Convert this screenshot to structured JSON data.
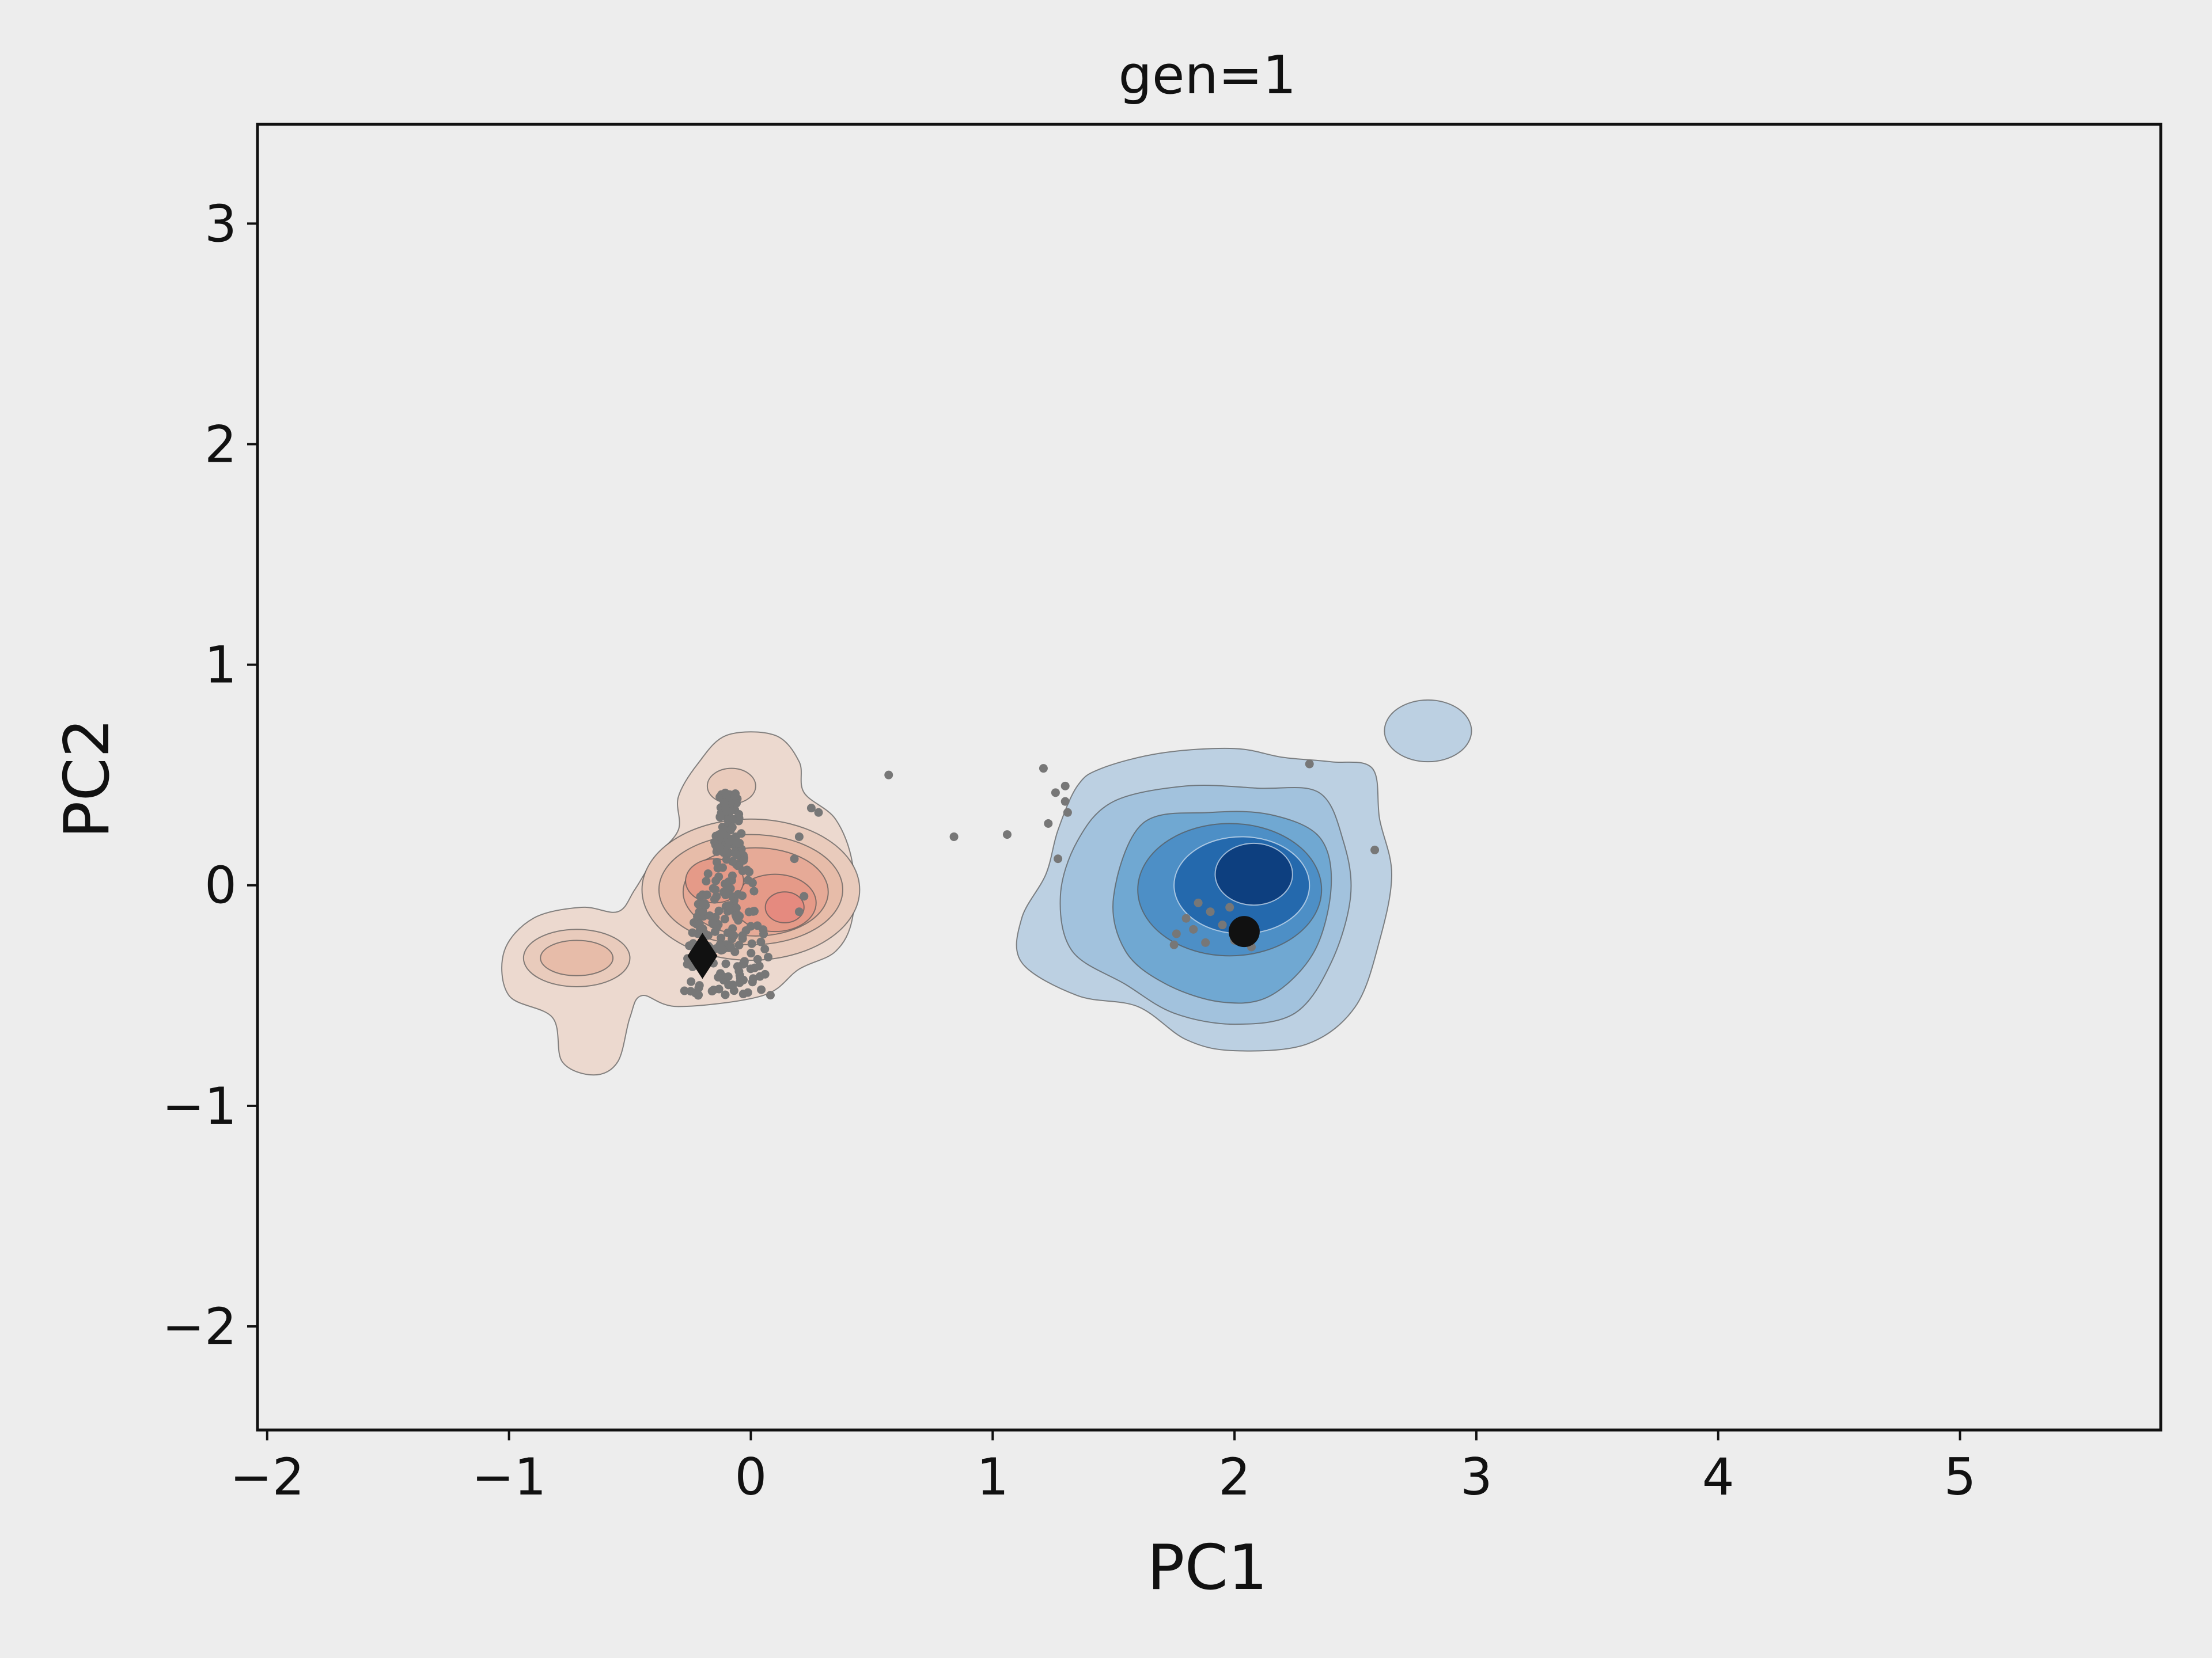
{
  "chart_data": {
    "type": "scatter",
    "title": "gen=1",
    "xlabel": "PC1",
    "ylabel": "PC2",
    "xlim": [
      -2.04,
      5.83
    ],
    "ylim": [
      -2.47,
      3.45
    ],
    "xticks": [
      -2,
      -1,
      0,
      1,
      2,
      3,
      4,
      5
    ],
    "xtick_labels": [
      "−2",
      "−1",
      "0",
      "1",
      "2",
      "3",
      "4",
      "5"
    ],
    "yticks": [
      -2,
      -1,
      0,
      1,
      2,
      3
    ],
    "ytick_labels": [
      "−2",
      "−1",
      "0",
      "1",
      "2",
      "3"
    ],
    "grid": false,
    "colors": {
      "background": "#ededed",
      "red_density_light": "#ecd5c9",
      "red_density_dark": "#e58a7f",
      "blue_density_light": "#b8cfe1",
      "blue_density_dark": "#0d3f7f",
      "points": "#777777",
      "markers": "#111111"
    },
    "density_regions": [
      {
        "name": "red",
        "levels": [
          {
            "color": "#ecd9cf",
            "blobs": [
              {
                "type": "path",
                "points": [
                  [
                    -0.22,
                    0.55
                  ],
                  [
                    -0.1,
                    0.68
                  ],
                  [
                    0.1,
                    0.68
                  ],
                  [
                    0.2,
                    0.56
                  ],
                  [
                    0.22,
                    0.42
                  ],
                  [
                    0.35,
                    0.3
                  ],
                  [
                    0.42,
                    0.1
                  ],
                  [
                    0.42,
                    -0.15
                  ],
                  [
                    0.35,
                    -0.3
                  ],
                  [
                    0.2,
                    -0.38
                  ],
                  [
                    0.05,
                    -0.5
                  ],
                  [
                    -0.3,
                    -0.55
                  ],
                  [
                    -0.45,
                    -0.5
                  ],
                  [
                    -0.5,
                    -0.6
                  ],
                  [
                    -0.55,
                    -0.8
                  ],
                  [
                    -0.65,
                    -0.86
                  ],
                  [
                    -0.78,
                    -0.8
                  ],
                  [
                    -0.82,
                    -0.6
                  ],
                  [
                    -1.0,
                    -0.5
                  ],
                  [
                    -1.02,
                    -0.3
                  ],
                  [
                    -0.9,
                    -0.15
                  ],
                  [
                    -0.7,
                    -0.1
                  ],
                  [
                    -0.55,
                    -0.12
                  ],
                  [
                    -0.48,
                    -0.02
                  ],
                  [
                    -0.4,
                    0.12
                  ],
                  [
                    -0.3,
                    0.25
                  ],
                  [
                    -0.3,
                    0.4
                  ]
                ]
              }
            ]
          },
          {
            "color": "#e9cbbc",
            "blobs": [
              {
                "type": "ellipse",
                "cx": 0.0,
                "cy": -0.02,
                "rx": 0.45,
                "ry": 0.32
              },
              {
                "type": "ellipse",
                "cx": -0.72,
                "cy": -0.33,
                "rx": 0.22,
                "ry": 0.13
              },
              {
                "type": "ellipse",
                "cx": -0.08,
                "cy": 0.45,
                "rx": 0.1,
                "ry": 0.08
              }
            ]
          },
          {
            "color": "#e7bca9",
            "blobs": [
              {
                "type": "ellipse",
                "cx": 0.0,
                "cy": -0.02,
                "rx": 0.38,
                "ry": 0.25
              },
              {
                "type": "ellipse",
                "cx": -0.72,
                "cy": -0.33,
                "rx": 0.15,
                "ry": 0.08
              }
            ]
          },
          {
            "color": "#e6aa97",
            "blobs": [
              {
                "type": "ellipse",
                "cx": 0.02,
                "cy": -0.03,
                "rx": 0.3,
                "ry": 0.2
              }
            ]
          },
          {
            "color": "#e59a88",
            "blobs": [
              {
                "type": "ellipse",
                "cx": 0.1,
                "cy": -0.08,
                "rx": 0.17,
                "ry": 0.13
              },
              {
                "type": "ellipse",
                "cx": -0.15,
                "cy": 0.02,
                "rx": 0.12,
                "ry": 0.1
              }
            ]
          },
          {
            "color": "#e58a7f",
            "blobs": [
              {
                "type": "ellipse",
                "cx": 0.14,
                "cy": -0.1,
                "rx": 0.08,
                "ry": 0.07
              }
            ]
          }
        ]
      },
      {
        "name": "blue",
        "levels": [
          {
            "color": "#bcd0e2",
            "blobs": [
              {
                "type": "path",
                "points": [
                  [
                    1.45,
                    0.53
                  ],
                  [
                    1.7,
                    0.6
                  ],
                  [
                    2.0,
                    0.62
                  ],
                  [
                    2.2,
                    0.58
                  ],
                  [
                    2.4,
                    0.56
                  ],
                  [
                    2.57,
                    0.53
                  ],
                  [
                    2.6,
                    0.3
                  ],
                  [
                    2.65,
                    0.05
                  ],
                  [
                    2.6,
                    -0.25
                  ],
                  [
                    2.5,
                    -0.55
                  ],
                  [
                    2.3,
                    -0.72
                  ],
                  [
                    2.0,
                    -0.75
                  ],
                  [
                    1.8,
                    -0.7
                  ],
                  [
                    1.6,
                    -0.55
                  ],
                  [
                    1.35,
                    -0.5
                  ],
                  [
                    1.12,
                    -0.35
                  ],
                  [
                    1.12,
                    -0.15
                  ],
                  [
                    1.22,
                    0.05
                  ],
                  [
                    1.27,
                    0.25
                  ],
                  [
                    1.35,
                    0.45
                  ]
                ]
              },
              {
                "type": "ellipse",
                "cx": 2.8,
                "cy": 0.7,
                "rx": 0.18,
                "ry": 0.14
              }
            ]
          },
          {
            "color": "#a2c2dd",
            "blobs": [
              {
                "type": "path",
                "points": [
                  [
                    1.5,
                    0.38
                  ],
                  [
                    1.8,
                    0.45
                  ],
                  [
                    2.1,
                    0.44
                  ],
                  [
                    2.35,
                    0.42
                  ],
                  [
                    2.45,
                    0.2
                  ],
                  [
                    2.48,
                    -0.05
                  ],
                  [
                    2.4,
                    -0.35
                  ],
                  [
                    2.25,
                    -0.58
                  ],
                  [
                    2.0,
                    -0.63
                  ],
                  [
                    1.75,
                    -0.58
                  ],
                  [
                    1.55,
                    -0.45
                  ],
                  [
                    1.33,
                    -0.3
                  ],
                  [
                    1.28,
                    -0.05
                  ],
                  [
                    1.35,
                    0.2
                  ]
                ]
              }
            ]
          },
          {
            "color": "#70a8d2",
            "blobs": [
              {
                "type": "path",
                "points": [
                  [
                    1.62,
                    0.28
                  ],
                  [
                    1.9,
                    0.33
                  ],
                  [
                    2.15,
                    0.32
                  ],
                  [
                    2.35,
                    0.22
                  ],
                  [
                    2.4,
                    0.0
                  ],
                  [
                    2.33,
                    -0.3
                  ],
                  [
                    2.15,
                    -0.5
                  ],
                  [
                    1.95,
                    -0.53
                  ],
                  [
                    1.72,
                    -0.45
                  ],
                  [
                    1.55,
                    -0.3
                  ],
                  [
                    1.5,
                    -0.05
                  ]
                ]
              }
            ]
          },
          {
            "color": "#4d8fc6",
            "blobs": [
              {
                "type": "ellipse",
                "cx": 1.98,
                "cy": -0.02,
                "rx": 0.38,
                "ry": 0.3
              }
            ]
          },
          {
            "color": "#2469ad",
            "blobs": [
              {
                "type": "ellipse",
                "cx": 2.03,
                "cy": 0.0,
                "rx": 0.28,
                "ry": 0.22
              }
            ]
          },
          {
            "color": "#0d3f7f",
            "blobs": [
              {
                "type": "ellipse",
                "cx": 2.08,
                "cy": 0.05,
                "rx": 0.16,
                "ry": 0.14
              }
            ]
          }
        ]
      }
    ],
    "scatter_points": [
      {
        "x": 0.57,
        "y": 0.5
      },
      {
        "x": 0.84,
        "y": 0.22
      },
      {
        "x": 1.06,
        "y": 0.23
      },
      {
        "x": 1.21,
        "y": 0.53
      },
      {
        "x": 1.26,
        "y": 0.42
      },
      {
        "x": 1.3,
        "y": 0.45
      },
      {
        "x": 1.3,
        "y": 0.38
      },
      {
        "x": 1.23,
        "y": 0.28
      },
      {
        "x": 1.31,
        "y": 0.33
      },
      {
        "x": 1.27,
        "y": 0.12
      },
      {
        "x": 2.31,
        "y": 0.55
      },
      {
        "x": 2.58,
        "y": 0.16
      },
      {
        "x": 0.25,
        "y": 0.35
      },
      {
        "x": 0.28,
        "y": 0.33
      },
      {
        "x": 0.2,
        "y": 0.22
      },
      {
        "x": 0.18,
        "y": 0.12
      },
      {
        "x": 0.22,
        "y": -0.05
      },
      {
        "x": 0.2,
        "y": -0.12
      },
      {
        "x": 1.76,
        "y": -0.22
      },
      {
        "x": 1.8,
        "y": -0.15
      },
      {
        "x": 1.85,
        "y": -0.08
      },
      {
        "x": 1.9,
        "y": -0.12
      },
      {
        "x": 1.95,
        "y": -0.18
      },
      {
        "x": 2.0,
        "y": -0.25
      },
      {
        "x": 2.07,
        "y": -0.28
      },
      {
        "x": 1.75,
        "y": -0.27
      },
      {
        "x": 1.83,
        "y": -0.2
      },
      {
        "x": 1.88,
        "y": -0.26
      },
      {
        "x": 1.98,
        "y": -0.1
      }
    ],
    "scatter_cloud": {
      "x_range": [
        -0.28,
        0.1
      ],
      "y_range": [
        -0.5,
        0.42
      ],
      "count": 260
    },
    "centroid_markers": [
      {
        "name": "red-centroid",
        "shape": "diamond",
        "x": -0.2,
        "y": -0.32
      },
      {
        "name": "blue-centroid",
        "shape": "circle",
        "x": 2.04,
        "y": -0.21
      }
    ]
  }
}
